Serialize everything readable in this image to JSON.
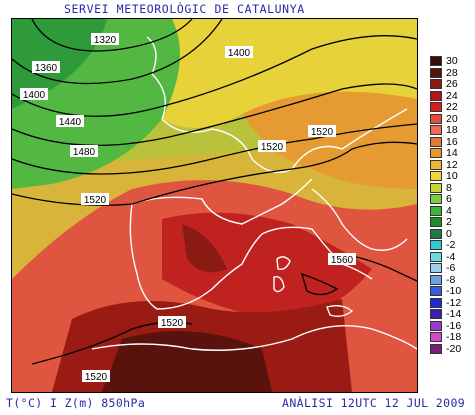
{
  "header": {
    "title": "SERVEI METEOROLÒGIC DE CATALUNYA"
  },
  "footer": {
    "left": "T(°C) I Z(m) 850hPa",
    "right": "ANÀLISI 12UTC 12 JUL 2009"
  },
  "map": {
    "contour_labels": [
      "1320",
      "1360",
      "1400",
      "1400",
      "1440",
      "1480",
      "1520",
      "1520",
      "1520",
      "1560",
      "1520",
      "1520"
    ]
  },
  "legend": {
    "items": [
      {
        "label": "30",
        "color": "#3a0a0a"
      },
      {
        "label": "28",
        "color": "#5a120d"
      },
      {
        "label": "26",
        "color": "#8b1a12"
      },
      {
        "label": "24",
        "color": "#b3161a"
      },
      {
        "label": "22",
        "color": "#d61f1f"
      },
      {
        "label": "20",
        "color": "#ec4a3c"
      },
      {
        "label": "18",
        "color": "#f2685a"
      },
      {
        "label": "16",
        "color": "#e07a2e"
      },
      {
        "label": "14",
        "color": "#e9962e"
      },
      {
        "label": "12",
        "color": "#f0b43a"
      },
      {
        "label": "10",
        "color": "#f3d43a"
      },
      {
        "label": "8",
        "color": "#c9d23a"
      },
      {
        "label": "6",
        "color": "#7ccd3a"
      },
      {
        "label": "4",
        "color": "#3ab43a"
      },
      {
        "label": "2",
        "color": "#1f8c2a"
      },
      {
        "label": "0",
        "color": "#1f7a4a"
      },
      {
        "label": "-2",
        "color": "#33cccc"
      },
      {
        "label": "-4",
        "color": "#6fdcdc"
      },
      {
        "label": "-6",
        "color": "#9ad0ea"
      },
      {
        "label": "-8",
        "color": "#6f9fe0"
      },
      {
        "label": "-10",
        "color": "#3a5ce0"
      },
      {
        "label": "-12",
        "color": "#1f2ad0"
      },
      {
        "label": "-14",
        "color": "#3a1fb0"
      },
      {
        "label": "-16",
        "color": "#9a3ad0"
      },
      {
        "label": "-18",
        "color": "#d04ad0"
      },
      {
        "label": "-20",
        "color": "#7a1f7a"
      }
    ]
  }
}
